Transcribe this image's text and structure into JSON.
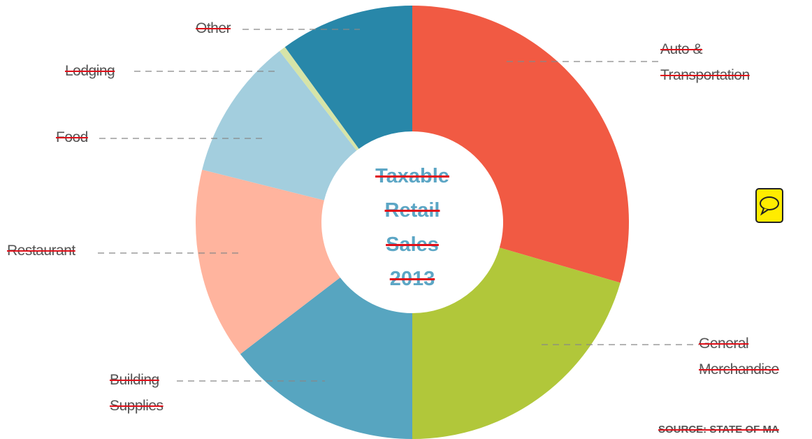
{
  "chart_data": {
    "type": "donut",
    "center_label": "Taxable Retail Sales 2013",
    "categories": [
      "Auto & Transportation",
      "General Merchandise",
      "Building Supplies",
      "Restaurant",
      "Food",
      "Lodging",
      "Other"
    ],
    "values": [
      29.5,
      20.5,
      14.6,
      14.3,
      10.6,
      0.5,
      10
    ],
    "colors": [
      "#f15a43",
      "#b1c73a",
      "#57a5c0",
      "#ffb49e",
      "#a3cede",
      "#d6e4a8",
      "#2887a9"
    ],
    "source": "SOURCE: STATE OF MA"
  }
}
